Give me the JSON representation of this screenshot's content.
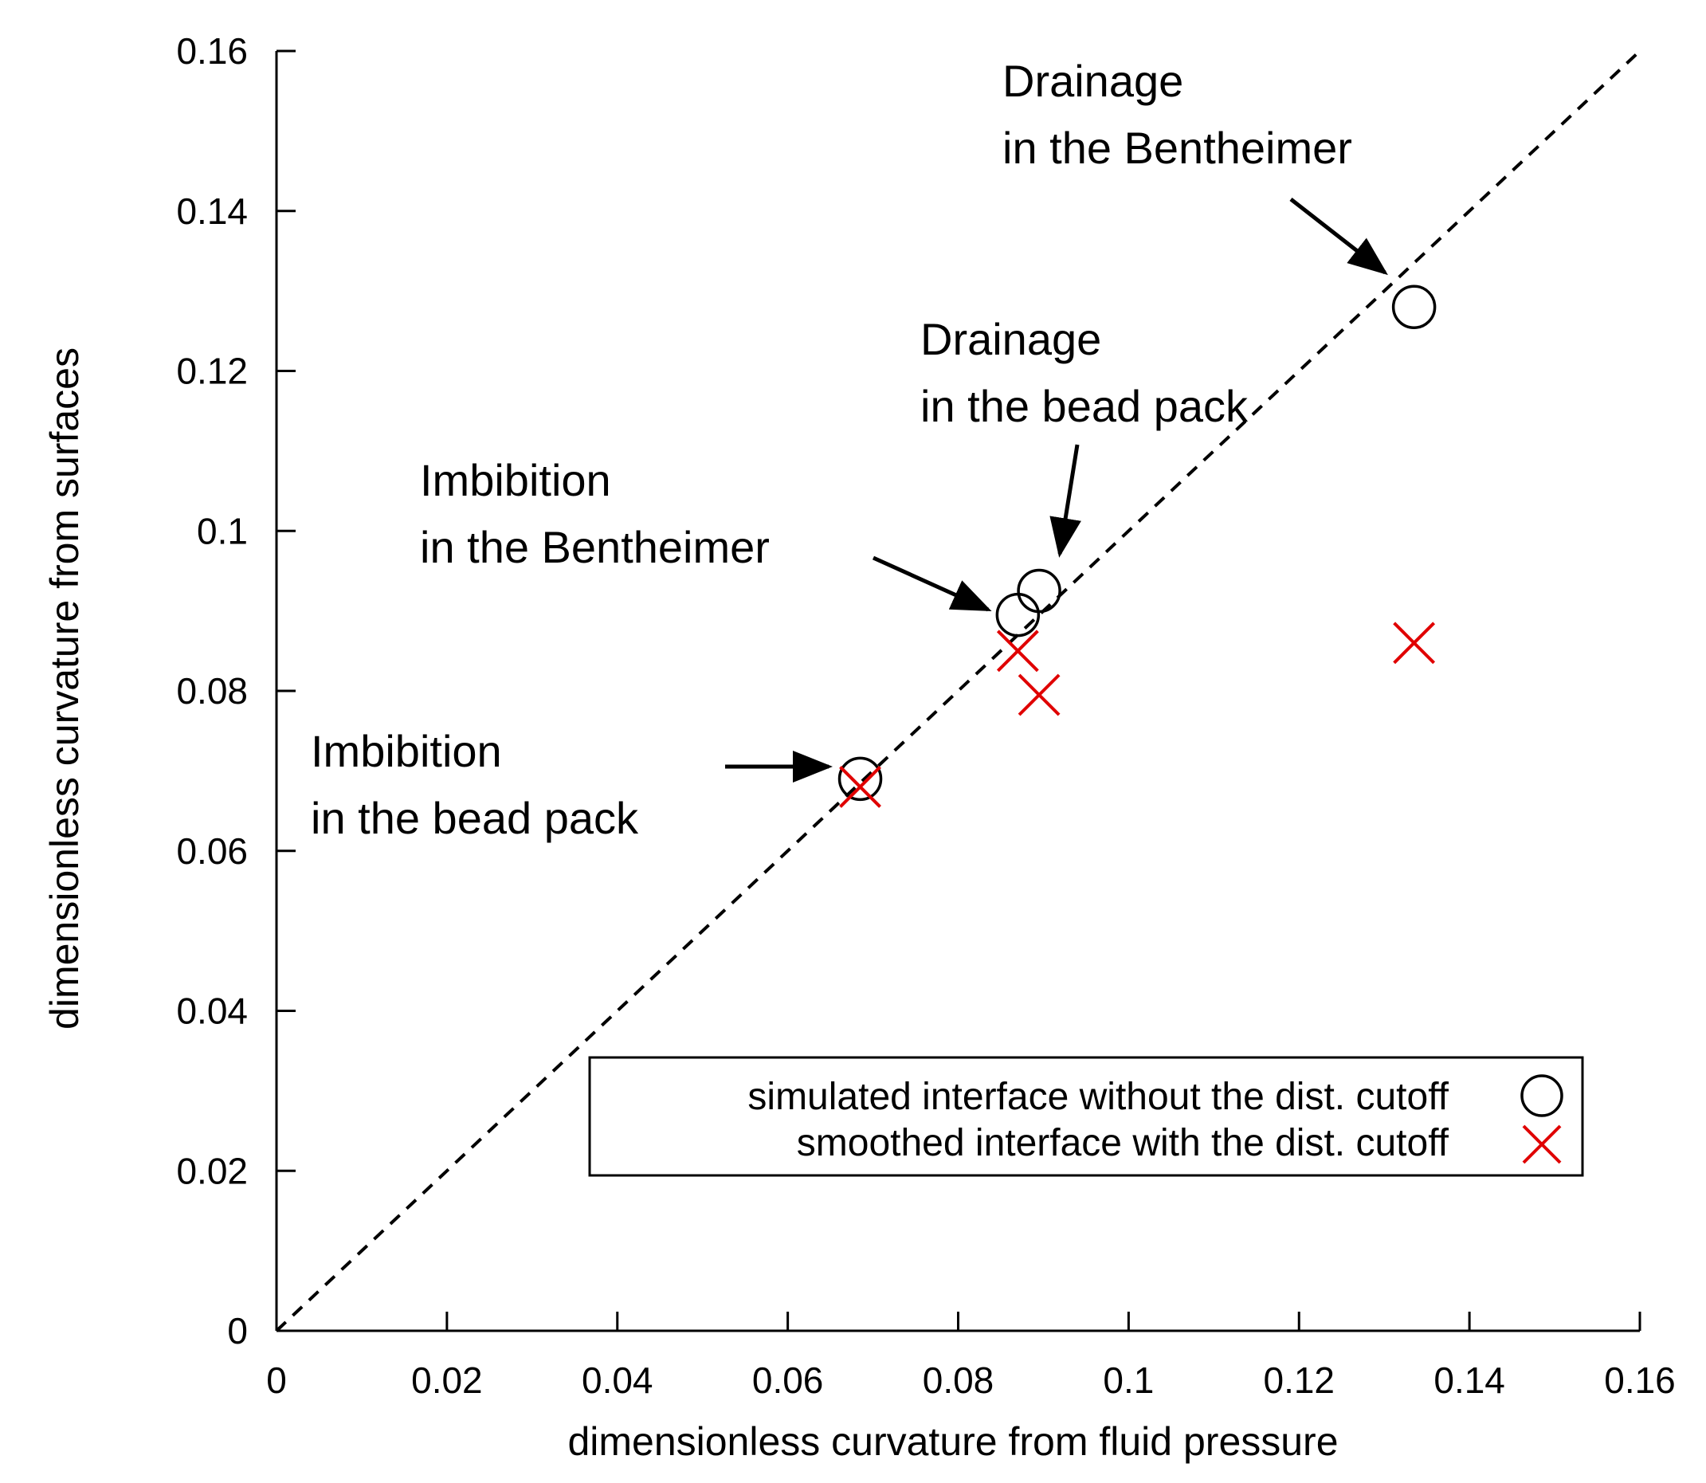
{
  "chart_data": {
    "type": "scatter",
    "xlabel": "dimensionless curvature from fluid pressure",
    "ylabel": "dimensionless curvature from surfaces",
    "xlim": [
      0,
      0.16
    ],
    "ylim": [
      0,
      0.16
    ],
    "xticks": [
      0,
      0.02,
      0.04,
      0.06,
      0.08,
      0.1,
      0.12,
      0.14,
      0.16
    ],
    "yticks": [
      0,
      0.02,
      0.04,
      0.06,
      0.08,
      0.1,
      0.12,
      0.14,
      0.16
    ],
    "xtick_labels": [
      "0",
      "0.02",
      "0.04",
      "0.06",
      "0.08",
      "0.1",
      "0.12",
      "0.14",
      "0.16"
    ],
    "ytick_labels": [
      "0",
      "0.02",
      "0.04",
      "0.06",
      "0.08",
      "0.1",
      "0.12",
      "0.14",
      "0.16"
    ],
    "grid": false,
    "reference_line": {
      "style": "dashed",
      "x": [
        0,
        0.16
      ],
      "y": [
        0,
        0.16
      ]
    },
    "series": [
      {
        "name": "simulated interface without the dist. cutoff",
        "marker": "circle",
        "color": "#000000",
        "x": [
          0.0685,
          0.087,
          0.0895,
          0.1335
        ],
        "y": [
          0.069,
          0.0895,
          0.0925,
          0.128
        ]
      },
      {
        "name": "smoothed interface with the dist. cutoff",
        "marker": "x",
        "color": "#e00000",
        "x": [
          0.0685,
          0.087,
          0.0895,
          0.1335
        ],
        "y": [
          0.068,
          0.085,
          0.0795,
          0.086
        ]
      }
    ],
    "legend_position": "bottom-right",
    "annotations": [
      {
        "lines": [
          "Drainage",
          "in the Bentheimer"
        ],
        "target": [
          0.1335,
          0.128
        ]
      },
      {
        "lines": [
          "Drainage",
          "in the bead pack"
        ],
        "target": [
          0.0895,
          0.0925
        ]
      },
      {
        "lines": [
          "Imbibition",
          "in the Bentheimer"
        ],
        "target": [
          0.087,
          0.0895
        ]
      },
      {
        "lines": [
          "Imbibition",
          "in the bead pack"
        ],
        "target": [
          0.0685,
          0.069
        ]
      }
    ]
  }
}
